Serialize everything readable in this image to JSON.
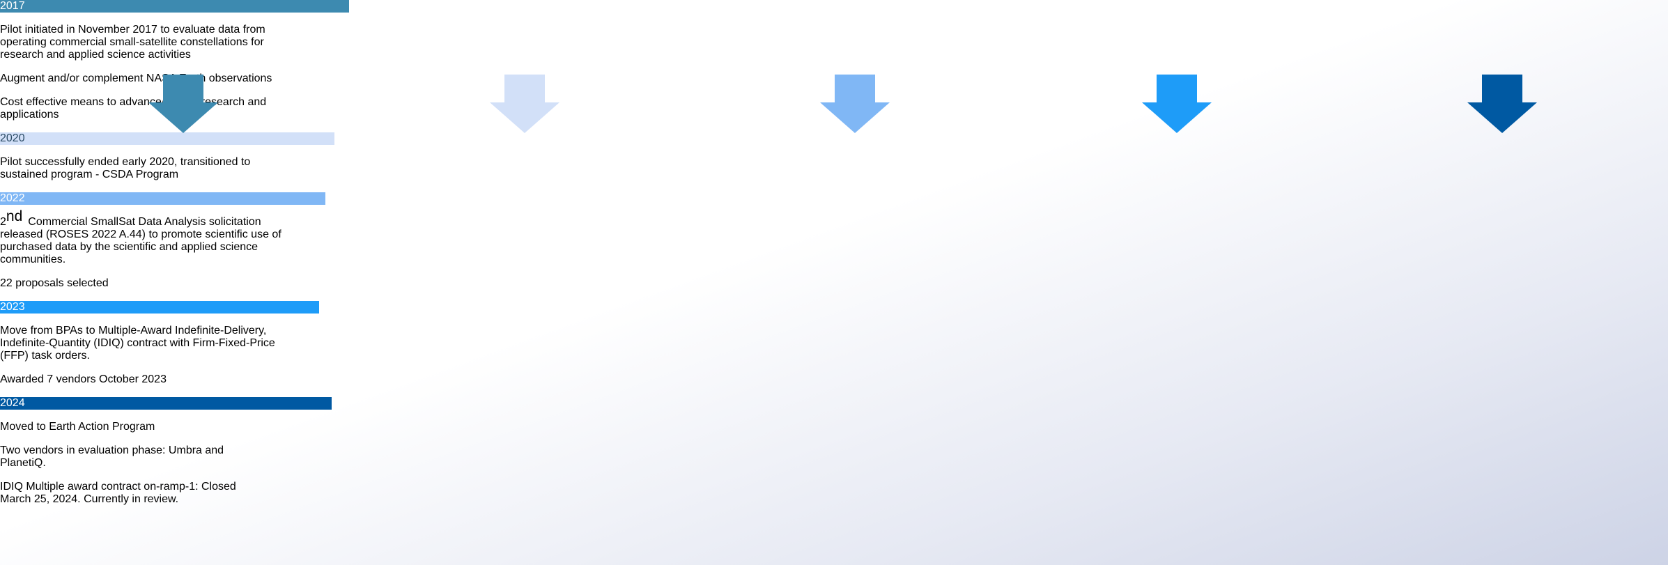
{
  "timeline": [
    {
      "year": "2017",
      "paragraphs": [
        {
          "text": "Pilot initiated in November 2017 to evaluate data from operating commercial small-satellite constellations for research and applied science activities"
        },
        {
          "text": "Augment and/or complement NASA Earth observations"
        },
        {
          "text": "Cost effective means to advance/extend research and applications"
        }
      ]
    },
    {
      "year": "2020",
      "paragraphs": [
        {
          "text": "Pilot successfully ended early 2020, transitioned to sustained program - CSDA Program"
        }
      ]
    },
    {
      "year": "2022",
      "paragraphs": [
        {
          "pre": "2",
          "sup": "nd",
          "text": "Commercial SmallSat Data Analysis solicitation released (ROSES 2022 A.44) to promote scientific use of purchased data by the scientific and applied science communities."
        },
        {
          "text": "22 proposals selected"
        }
      ]
    },
    {
      "year": "2023",
      "paragraphs": [
        {
          "text": "Move from BPAs to Multiple-Award Indefinite-Delivery, Indefinite-Quantity (IDIQ) contract with Firm-Fixed-Price (FFP) task orders."
        },
        {
          "text": "Awarded 7 vendors October 2023"
        }
      ]
    },
    {
      "year": "2024",
      "paragraphs": [
        {
          "text": "Moved to Earth Action Program"
        },
        {
          "text": "Two vendors in evaluation phase: Umbra and PlanetiQ."
        },
        {
          "text": "IDIQ Multiple award contract on-ramp-1: Closed March 25, 2024. Currently in review."
        }
      ]
    }
  ]
}
